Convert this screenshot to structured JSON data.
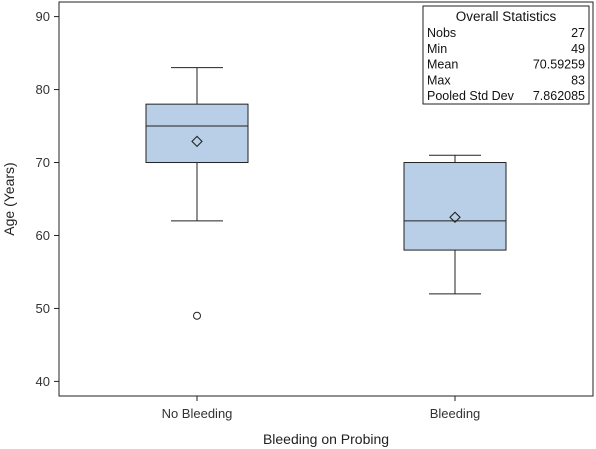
{
  "chart_data": {
    "type": "box",
    "xlabel": "Bleeding on Probing",
    "ylabel": "Age (Years)",
    "ylim": [
      38,
      92
    ],
    "yticks": [
      40,
      50,
      60,
      70,
      80,
      90
    ],
    "grid": false,
    "categories": [
      "No Bleeding",
      "Bleeding"
    ],
    "boxes": [
      {
        "category": "No Bleeding",
        "whisker_low": 62,
        "q1": 70,
        "median": 75,
        "q3": 78,
        "whisker_high": 83,
        "mean": 72.9,
        "outliers": [
          49
        ]
      },
      {
        "category": "Bleeding",
        "whisker_low": 52,
        "q1": 58,
        "median": 62,
        "q3": 70,
        "whisker_high": 71,
        "mean": 62.5,
        "outliers": []
      }
    ],
    "colors": {
      "box_fill": "#b9cfe8",
      "box_stroke": "#222222"
    },
    "stats_table": {
      "title": "Overall Statistics",
      "position": "top-right",
      "rows": [
        {
          "label": "Nobs",
          "value": "27"
        },
        {
          "label": "Min",
          "value": "49"
        },
        {
          "label": "Mean",
          "value": "70.59259"
        },
        {
          "label": "Max",
          "value": "83"
        },
        {
          "label": "Pooled Std Dev",
          "value": "7.862085"
        }
      ]
    }
  }
}
